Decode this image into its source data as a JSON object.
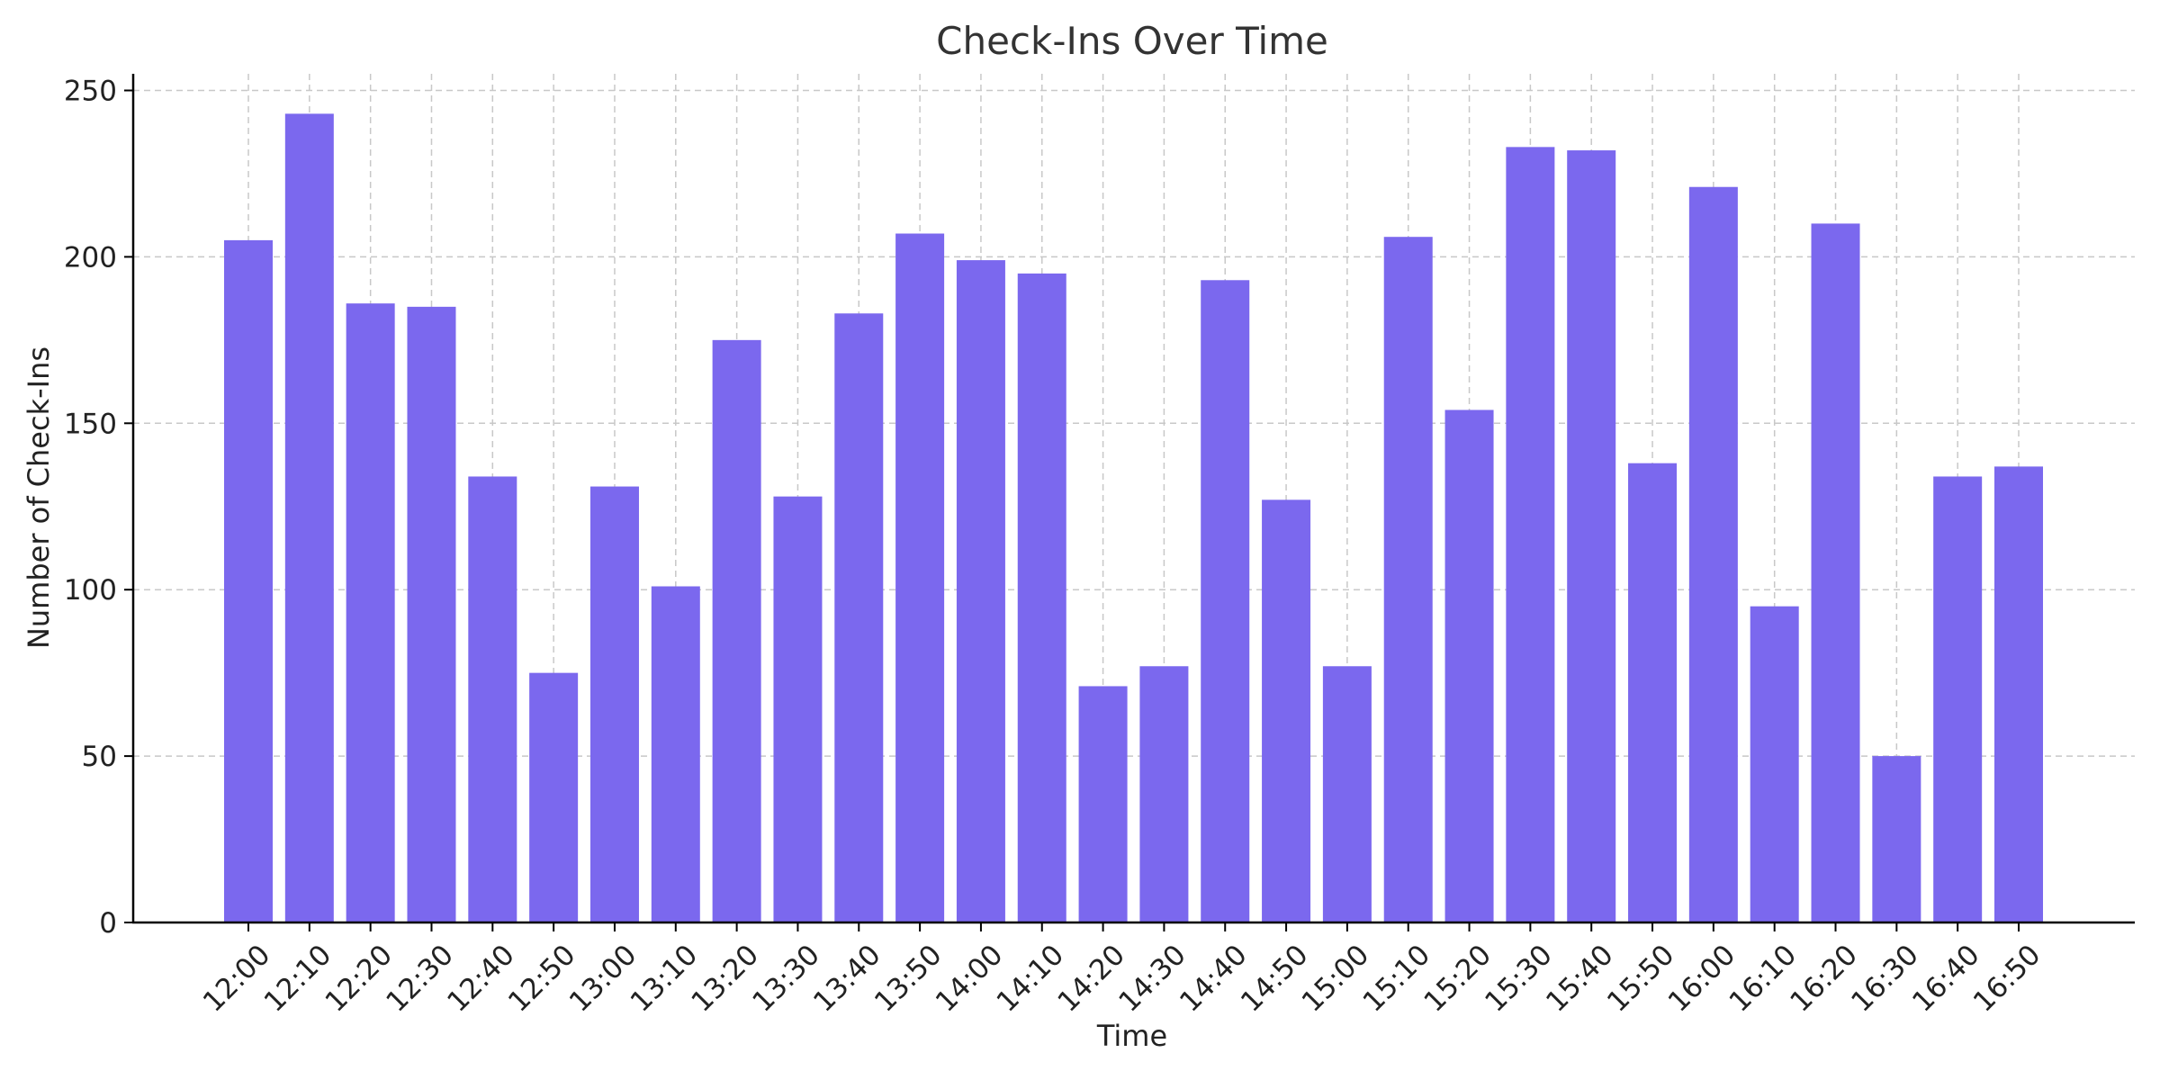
{
  "chart_data": {
    "type": "bar",
    "title": "Check-Ins Over Time",
    "xlabel": "Time",
    "ylabel": "Number of Check-Ins",
    "ylim": [
      0,
      255
    ],
    "yticks": [
      0,
      50,
      100,
      150,
      200,
      250
    ],
    "grid": true,
    "bar_color": "#7b68ee",
    "categories": [
      "12:00",
      "12:10",
      "12:20",
      "12:30",
      "12:40",
      "12:50",
      "13:00",
      "13:10",
      "13:20",
      "13:30",
      "13:40",
      "13:50",
      "14:00",
      "14:10",
      "14:20",
      "14:30",
      "14:40",
      "14:50",
      "15:00",
      "15:10",
      "15:20",
      "15:30",
      "15:40",
      "15:50",
      "16:00",
      "16:10",
      "16:20",
      "16:30",
      "16:40",
      "16:50"
    ],
    "values": [
      205,
      243,
      186,
      185,
      134,
      75,
      131,
      101,
      175,
      128,
      183,
      207,
      199,
      195,
      71,
      77,
      193,
      127,
      77,
      206,
      154,
      233,
      232,
      138,
      221,
      95,
      210,
      50,
      134,
      137
    ]
  }
}
